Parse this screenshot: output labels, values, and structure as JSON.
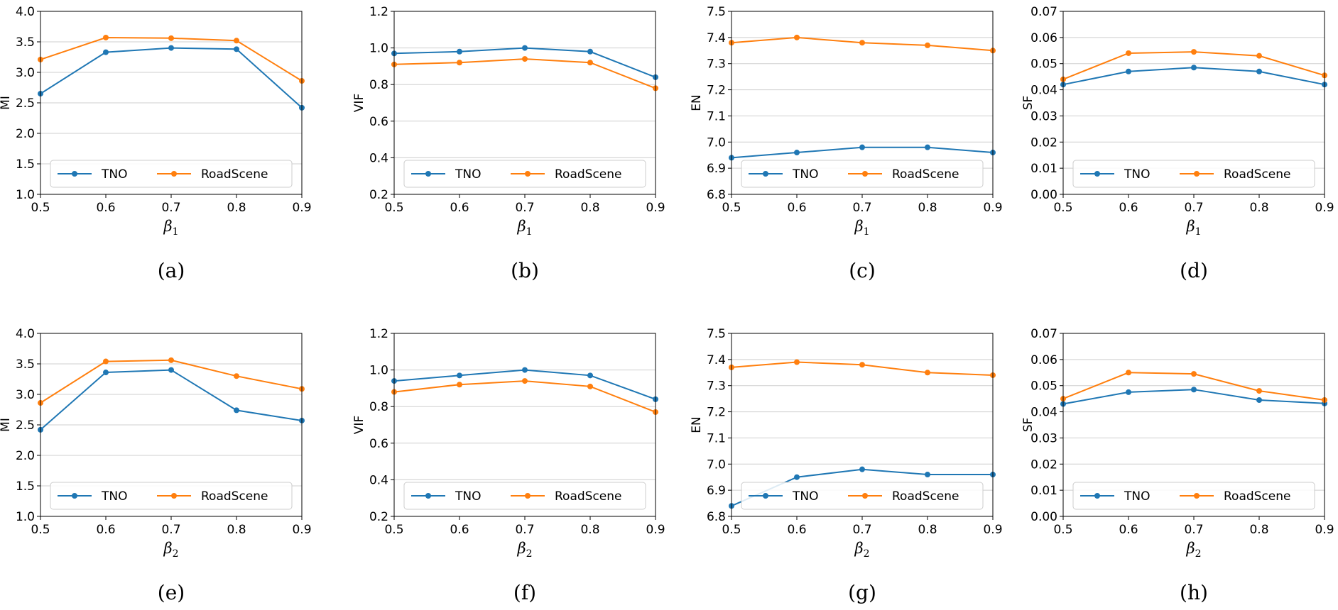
{
  "colors": {
    "series": [
      "#1f77b4",
      "#ff7f0e"
    ],
    "grid": "#cfcfcf",
    "axis": "#000000"
  },
  "chart_data": [
    {
      "type": "line",
      "caption": "(a)",
      "xlabel_base": "β",
      "xlabel_sub": "1",
      "ylabel": "MI",
      "x": [
        0.5,
        0.6,
        0.7,
        0.8,
        0.9
      ],
      "xticks": [
        "0.5",
        "0.6",
        "0.7",
        "0.8",
        "0.9"
      ],
      "ylim": [
        1.0,
        4.0
      ],
      "yticks": [
        "1.0",
        "1.5",
        "2.0",
        "2.5",
        "3.0",
        "3.5",
        "4.0"
      ],
      "legend": "bottom",
      "grid": "y",
      "series": [
        {
          "name": "TNO",
          "values": [
            2.65,
            3.33,
            3.4,
            3.38,
            2.42
          ]
        },
        {
          "name": "RoadScene",
          "values": [
            3.21,
            3.57,
            3.56,
            3.52,
            2.86
          ]
        }
      ]
    },
    {
      "type": "line",
      "caption": "(b)",
      "xlabel_base": "β",
      "xlabel_sub": "1",
      "ylabel": "VIF",
      "x": [
        0.5,
        0.6,
        0.7,
        0.8,
        0.9
      ],
      "xticks": [
        "0.5",
        "0.6",
        "0.7",
        "0.8",
        "0.9"
      ],
      "ylim": [
        0.2,
        1.2
      ],
      "yticks": [
        "0.2",
        "0.4",
        "0.6",
        "0.8",
        "1.0",
        "1.2"
      ],
      "legend": "bottom",
      "grid": "y",
      "series": [
        {
          "name": "TNO",
          "values": [
            0.97,
            0.98,
            1.0,
            0.98,
            0.84
          ]
        },
        {
          "name": "RoadScene",
          "values": [
            0.91,
            0.92,
            0.94,
            0.92,
            0.78
          ]
        }
      ]
    },
    {
      "type": "line",
      "caption": "(c)",
      "xlabel_base": "β",
      "xlabel_sub": "1",
      "ylabel": "EN",
      "x": [
        0.5,
        0.6,
        0.7,
        0.8,
        0.9
      ],
      "xticks": [
        "0.5",
        "0.6",
        "0.7",
        "0.8",
        "0.9"
      ],
      "ylim": [
        6.8,
        7.5
      ],
      "yticks": [
        "6.8",
        "6.9",
        "7.0",
        "7.1",
        "7.2",
        "7.3",
        "7.4",
        "7.5"
      ],
      "legend": "bottom",
      "grid": "y",
      "series": [
        {
          "name": "TNO",
          "values": [
            6.94,
            6.96,
            6.98,
            6.98,
            6.96
          ]
        },
        {
          "name": "RoadScene",
          "values": [
            7.38,
            7.4,
            7.38,
            7.37,
            7.35
          ]
        }
      ]
    },
    {
      "type": "line",
      "caption": "(d)",
      "xlabel_base": "β",
      "xlabel_sub": "1",
      "ylabel": "SF",
      "x": [
        0.5,
        0.6,
        0.7,
        0.8,
        0.9
      ],
      "xticks": [
        "0.5",
        "0.6",
        "0.7",
        "0.8",
        "0.9"
      ],
      "ylim": [
        0.0,
        0.07
      ],
      "yticks": [
        "0.00",
        "0.01",
        "0.02",
        "0.03",
        "0.04",
        "0.05",
        "0.06",
        "0.07"
      ],
      "legend": "bottom",
      "grid": "y",
      "series": [
        {
          "name": "TNO",
          "values": [
            0.042,
            0.047,
            0.0485,
            0.047,
            0.042
          ]
        },
        {
          "name": "RoadScene",
          "values": [
            0.044,
            0.054,
            0.0545,
            0.053,
            0.0455
          ]
        }
      ]
    },
    {
      "type": "line",
      "caption": "(e)",
      "xlabel_base": "β",
      "xlabel_sub": "2",
      "ylabel": "MI",
      "x": [
        0.5,
        0.6,
        0.7,
        0.8,
        0.9
      ],
      "xticks": [
        "0.5",
        "0.6",
        "0.7",
        "0.8",
        "0.9"
      ],
      "ylim": [
        1.0,
        4.0
      ],
      "yticks": [
        "1.0",
        "1.5",
        "2.0",
        "2.5",
        "3.0",
        "3.5",
        "4.0"
      ],
      "legend": "bottom",
      "grid": "y",
      "series": [
        {
          "name": "TNO",
          "values": [
            2.42,
            3.36,
            3.4,
            2.74,
            2.57
          ]
        },
        {
          "name": "RoadScene",
          "values": [
            2.86,
            3.54,
            3.56,
            3.3,
            3.09
          ]
        }
      ]
    },
    {
      "type": "line",
      "caption": "(f)",
      "xlabel_base": "β",
      "xlabel_sub": "2",
      "ylabel": "VIF",
      "x": [
        0.5,
        0.6,
        0.7,
        0.8,
        0.9
      ],
      "xticks": [
        "0.5",
        "0.6",
        "0.7",
        "0.8",
        "0.9"
      ],
      "ylim": [
        0.2,
        1.2
      ],
      "yticks": [
        "0.2",
        "0.4",
        "0.6",
        "0.8",
        "1.0",
        "1.2"
      ],
      "legend": "bottom",
      "grid": "y",
      "series": [
        {
          "name": "TNO",
          "values": [
            0.94,
            0.97,
            1.0,
            0.97,
            0.84
          ]
        },
        {
          "name": "RoadScene",
          "values": [
            0.88,
            0.92,
            0.94,
            0.91,
            0.77
          ]
        }
      ]
    },
    {
      "type": "line",
      "caption": "(g)",
      "xlabel_base": "β",
      "xlabel_sub": "2",
      "ylabel": "EN",
      "x": [
        0.5,
        0.6,
        0.7,
        0.8,
        0.9
      ],
      "xticks": [
        "0.5",
        "0.6",
        "0.7",
        "0.8",
        "0.9"
      ],
      "ylim": [
        6.8,
        7.5
      ],
      "yticks": [
        "6.8",
        "6.9",
        "7.0",
        "7.1",
        "7.2",
        "7.3",
        "7.4",
        "7.5"
      ],
      "legend": "bottom",
      "grid": "y",
      "series": [
        {
          "name": "TNO",
          "values": [
            6.84,
            6.95,
            6.98,
            6.96,
            6.96
          ]
        },
        {
          "name": "RoadScene",
          "values": [
            7.37,
            7.39,
            7.38,
            7.35,
            7.34
          ]
        }
      ]
    },
    {
      "type": "line",
      "caption": "(h)",
      "xlabel_base": "β",
      "xlabel_sub": "2",
      "ylabel": "SF",
      "x": [
        0.5,
        0.6,
        0.7,
        0.8,
        0.9
      ],
      "xticks": [
        "0.5",
        "0.6",
        "0.7",
        "0.8",
        "0.9"
      ],
      "ylim": [
        0.0,
        0.07
      ],
      "yticks": [
        "0.00",
        "0.01",
        "0.02",
        "0.03",
        "0.04",
        "0.05",
        "0.06",
        "0.07"
      ],
      "legend": "bottom",
      "grid": "y",
      "series": [
        {
          "name": "TNO",
          "values": [
            0.043,
            0.0475,
            0.0485,
            0.0445,
            0.0432
          ]
        },
        {
          "name": "RoadScene",
          "values": [
            0.045,
            0.055,
            0.0545,
            0.048,
            0.0445
          ]
        }
      ]
    }
  ]
}
